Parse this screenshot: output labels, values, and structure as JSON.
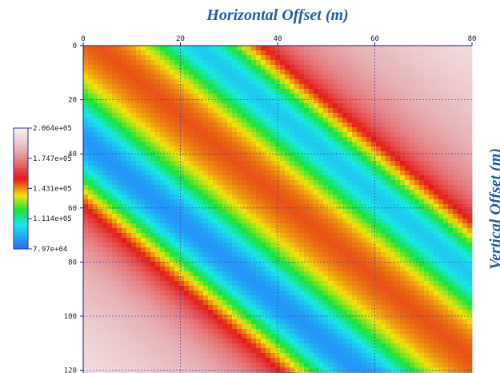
{
  "chart_data": {
    "type": "heatmap",
    "title": "",
    "xlabel": "Horizontal Offset (m)",
    "ylabel": "Vertical Offset (m)",
    "x_axis": {
      "position": "top",
      "range": [
        0,
        80
      ],
      "ticks": [
        0,
        20,
        40,
        60,
        80
      ],
      "tick_labels": [
        "0",
        "20",
        "40",
        "60",
        "80"
      ]
    },
    "y_axis": {
      "position": "left",
      "inverted": true,
      "range": [
        0,
        120
      ],
      "ticks": [
        0,
        20,
        40,
        60,
        80,
        100,
        120
      ],
      "tick_labels": [
        "0",
        "20",
        "40",
        "60",
        "80",
        "100",
        "120"
      ]
    },
    "grid": true,
    "value_description": "Two diagonal bands of minimum values (blue) running from top-left to bottom-right, flanked by high values (red) bands; background near upper-right and lower-left is light pinkish.",
    "colorbar": {
      "placement": "left",
      "range": [
        79700,
        206400
      ],
      "ticks": [
        206400,
        174700,
        143100,
        111400,
        79700
      ],
      "tick_labels": [
        "2.064e+05",
        "1.747e+05",
        "1.431e+05",
        "1.114e+05",
        "7.97e+04"
      ],
      "colors": [
        "#f7f4f6",
        "#e0a8ab",
        "#e51a1a",
        "#f2e40a",
        "#18e23a",
        "#19e8e8",
        "#2a6bff"
      ]
    }
  }
}
